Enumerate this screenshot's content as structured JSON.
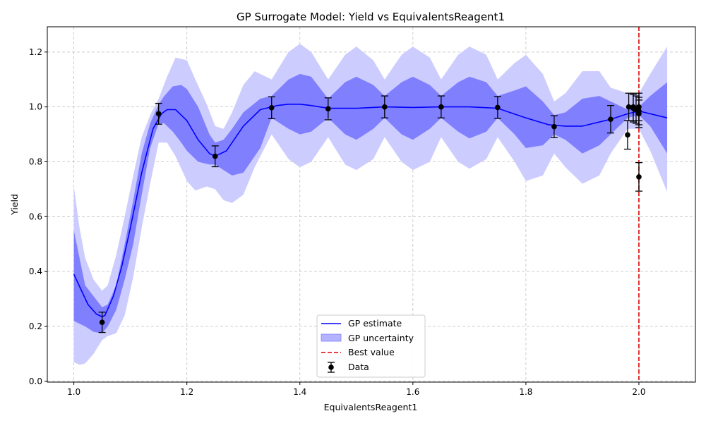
{
  "chart_data": {
    "type": "line",
    "title": "GP Surrogate Model: Yield vs EquivalentsReagent1",
    "xlabel": "EquivalentsReagent1",
    "ylabel": "Yield",
    "xlim": [
      0.953,
      2.1
    ],
    "ylim": [
      -0.003,
      1.292
    ],
    "xticks": [
      1.0,
      1.2,
      1.4,
      1.6,
      1.8,
      2.0
    ],
    "xtick_labels": [
      "1.0",
      "1.2",
      "1.4",
      "1.6",
      "1.8",
      "2.0"
    ],
    "yticks": [
      0.0,
      0.2,
      0.4,
      0.6,
      0.8,
      1.0,
      1.2
    ],
    "ytick_labels": [
      "0.0",
      "0.2",
      "0.4",
      "0.6",
      "0.8",
      "1.0",
      "1.2"
    ],
    "grid": true,
    "legend_position": "bottom-center",
    "legend": {
      "gp_estimate": "GP estimate",
      "gp_uncertainty": "GP uncertainty",
      "best_value": "Best value",
      "data": "Data"
    },
    "colors": {
      "gp_line": "#0000ff",
      "band_inner": "#8080ff",
      "band_outer": "#ccccff",
      "best_value": "#dd0000",
      "data": "#000000",
      "grid": "#c0c0c0"
    },
    "best_value_x": 2.0,
    "gp_estimate": {
      "x": [
        1.0,
        1.025,
        1.04,
        1.05,
        1.055,
        1.07,
        1.085,
        1.1,
        1.12,
        1.14,
        1.155,
        1.165,
        1.18,
        1.2,
        1.22,
        1.24,
        1.25,
        1.27,
        1.3,
        1.33,
        1.36,
        1.38,
        1.4,
        1.42,
        1.45,
        1.5,
        1.55,
        1.6,
        1.65,
        1.7,
        1.75,
        1.8,
        1.84,
        1.87,
        1.9,
        1.95,
        1.98,
        2.0,
        2.05
      ],
      "y": [
        0.39,
        0.28,
        0.245,
        0.235,
        0.24,
        0.31,
        0.42,
        0.56,
        0.76,
        0.92,
        0.975,
        0.99,
        0.99,
        0.95,
        0.88,
        0.83,
        0.82,
        0.84,
        0.93,
        0.99,
        1.005,
        1.01,
        1.01,
        1.005,
        0.995,
        0.995,
        1.0,
        0.998,
        1.0,
        1.0,
        0.995,
        0.96,
        0.935,
        0.93,
        0.93,
        0.955,
        0.975,
        0.985,
        0.96
      ]
    },
    "gp_uncertainty_inner": {
      "x": [
        1.0,
        1.02,
        1.035,
        1.05,
        1.06,
        1.075,
        1.09,
        1.105,
        1.12,
        1.135,
        1.15,
        1.16,
        1.175,
        1.19,
        1.2,
        1.22,
        1.24,
        1.25,
        1.265,
        1.28,
        1.3,
        1.33,
        1.35,
        1.38,
        1.4,
        1.42,
        1.45,
        1.48,
        1.5,
        1.53,
        1.55,
        1.58,
        1.6,
        1.63,
        1.65,
        1.68,
        1.7,
        1.73,
        1.75,
        1.78,
        1.8,
        1.83,
        1.85,
        1.87,
        1.9,
        1.93,
        1.95,
        1.98,
        2.0,
        2.02,
        2.05
      ],
      "upper": [
        0.55,
        0.35,
        0.31,
        0.27,
        0.28,
        0.35,
        0.5,
        0.66,
        0.83,
        0.94,
        1.01,
        1.04,
        1.075,
        1.08,
        1.065,
        1.0,
        0.9,
        0.87,
        0.88,
        0.92,
        0.98,
        1.03,
        1.04,
        1.1,
        1.12,
        1.11,
        1.03,
        1.09,
        1.11,
        1.08,
        1.04,
        1.09,
        1.11,
        1.08,
        1.04,
        1.09,
        1.11,
        1.09,
        1.04,
        1.06,
        1.075,
        1.02,
        0.97,
        0.98,
        1.03,
        1.04,
        1.02,
        0.99,
        1.0,
        1.04,
        1.09
      ],
      "lower": [
        0.22,
        0.2,
        0.18,
        0.175,
        0.2,
        0.26,
        0.37,
        0.5,
        0.68,
        0.85,
        0.94,
        0.94,
        0.91,
        0.87,
        0.84,
        0.8,
        0.79,
        0.79,
        0.77,
        0.75,
        0.76,
        0.85,
        0.96,
        0.92,
        0.9,
        0.91,
        0.96,
        0.9,
        0.88,
        0.92,
        0.96,
        0.9,
        0.88,
        0.92,
        0.96,
        0.91,
        0.885,
        0.91,
        0.96,
        0.9,
        0.85,
        0.86,
        0.9,
        0.88,
        0.83,
        0.86,
        0.9,
        0.96,
        0.97,
        0.93,
        0.83
      ]
    },
    "gp_uncertainty_outer": {
      "x": [
        1.0,
        1.01,
        1.02,
        1.035,
        1.05,
        1.06,
        1.075,
        1.09,
        1.105,
        1.12,
        1.135,
        1.15,
        1.165,
        1.18,
        1.2,
        1.215,
        1.235,
        1.25,
        1.265,
        1.28,
        1.3,
        1.32,
        1.35,
        1.38,
        1.4,
        1.42,
        1.45,
        1.48,
        1.5,
        1.53,
        1.55,
        1.58,
        1.6,
        1.63,
        1.65,
        1.68,
        1.7,
        1.73,
        1.75,
        1.78,
        1.8,
        1.83,
        1.85,
        1.87,
        1.9,
        1.93,
        1.95,
        1.98,
        2.0,
        2.02,
        2.05
      ],
      "upper": [
        0.71,
        0.56,
        0.45,
        0.37,
        0.33,
        0.35,
        0.46,
        0.6,
        0.75,
        0.89,
        0.97,
        1.03,
        1.11,
        1.18,
        1.17,
        1.1,
        1.01,
        0.93,
        0.92,
        0.98,
        1.08,
        1.13,
        1.1,
        1.2,
        1.23,
        1.2,
        1.1,
        1.19,
        1.22,
        1.17,
        1.1,
        1.19,
        1.22,
        1.18,
        1.1,
        1.19,
        1.22,
        1.19,
        1.1,
        1.16,
        1.19,
        1.12,
        1.02,
        1.05,
        1.13,
        1.13,
        1.07,
        1.05,
        1.05,
        1.12,
        1.22
      ],
      "lower": [
        0.07,
        0.06,
        0.065,
        0.1,
        0.15,
        0.165,
        0.175,
        0.24,
        0.38,
        0.56,
        0.72,
        0.87,
        0.87,
        0.82,
        0.73,
        0.695,
        0.71,
        0.7,
        0.66,
        0.65,
        0.68,
        0.78,
        0.9,
        0.81,
        0.78,
        0.8,
        0.89,
        0.79,
        0.77,
        0.81,
        0.89,
        0.8,
        0.77,
        0.8,
        0.89,
        0.8,
        0.775,
        0.81,
        0.89,
        0.8,
        0.73,
        0.75,
        0.83,
        0.78,
        0.72,
        0.75,
        0.83,
        0.92,
        0.92,
        0.84,
        0.69
      ]
    },
    "data_points": [
      {
        "x": 1.05,
        "y": 0.215,
        "err": 0.037
      },
      {
        "x": 1.15,
        "y": 0.975,
        "err": 0.038
      },
      {
        "x": 1.25,
        "y": 0.82,
        "err": 0.038
      },
      {
        "x": 1.35,
        "y": 0.997,
        "err": 0.04
      },
      {
        "x": 1.45,
        "y": 0.993,
        "err": 0.04
      },
      {
        "x": 1.55,
        "y": 1.0,
        "err": 0.04
      },
      {
        "x": 1.65,
        "y": 1.0,
        "err": 0.04
      },
      {
        "x": 1.75,
        "y": 0.998,
        "err": 0.04
      },
      {
        "x": 1.85,
        "y": 0.928,
        "err": 0.04
      },
      {
        "x": 1.95,
        "y": 0.955,
        "err": 0.05
      },
      {
        "x": 1.98,
        "y": 0.898,
        "err": 0.052
      },
      {
        "x": 1.982,
        "y": 1.0,
        "err": 0.05
      },
      {
        "x": 1.99,
        "y": 1.0,
        "err": 0.05
      },
      {
        "x": 1.99,
        "y": 0.995,
        "err": 0.05
      },
      {
        "x": 1.995,
        "y": 0.99,
        "err": 0.05
      },
      {
        "x": 2.0,
        "y": 1.0,
        "err": 0.05
      },
      {
        "x": 2.0,
        "y": 0.985,
        "err": 0.05
      },
      {
        "x": 2.0,
        "y": 0.975,
        "err": 0.05
      },
      {
        "x": 2.0,
        "y": 0.745,
        "err": 0.052
      }
    ]
  }
}
